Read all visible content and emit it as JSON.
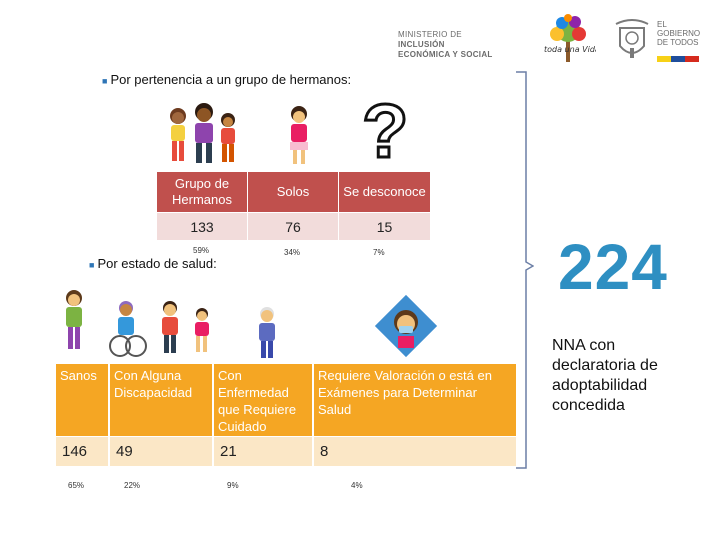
{
  "header": {
    "ministry_line1": "MINISTERIO DE",
    "ministry_line1_strong": "INCLUSIÓN",
    "ministry_line2": "ECONÓMICA Y SOCIAL",
    "program_logo_text": "toda una Vida",
    "gov_line1": "EL",
    "gov_line2": "GOBIERNO",
    "gov_line3": "DE TODOS"
  },
  "section1": {
    "title": "Por pertenencia a un grupo de hermanos:",
    "columns": [
      {
        "label": "Grupo de Hermanos",
        "value": "133",
        "percent": "59%"
      },
      {
        "label": "Solos",
        "value": "76",
        "percent": "34%"
      },
      {
        "label": "Se desconoce",
        "value": "15",
        "percent": "7%"
      }
    ],
    "question_mark": "?"
  },
  "section2": {
    "title": "Por estado de salud:",
    "columns": [
      {
        "label": "Sanos",
        "value": "146",
        "percent": "65%"
      },
      {
        "label": "Con Alguna Discapacidad",
        "value": "49",
        "percent": "22%"
      },
      {
        "label": "Con Enfermedad que Requiere Cuidado",
        "value": "21",
        "percent": "9%"
      },
      {
        "label": "Requiere Valoración o está en Exámenes para Determinar Salud",
        "value": "8",
        "percent": "4%"
      }
    ]
  },
  "summary": {
    "total": "224",
    "caption": "NNA con declaratoria de adoptabilidad concedida"
  },
  "colors": {
    "table1_header": "#c0504d",
    "table1_row": "#f2dcdb",
    "table2_header": "#f5a623",
    "table2_row": "#fbe7c6",
    "accent_blue": "#2e8fc2"
  }
}
